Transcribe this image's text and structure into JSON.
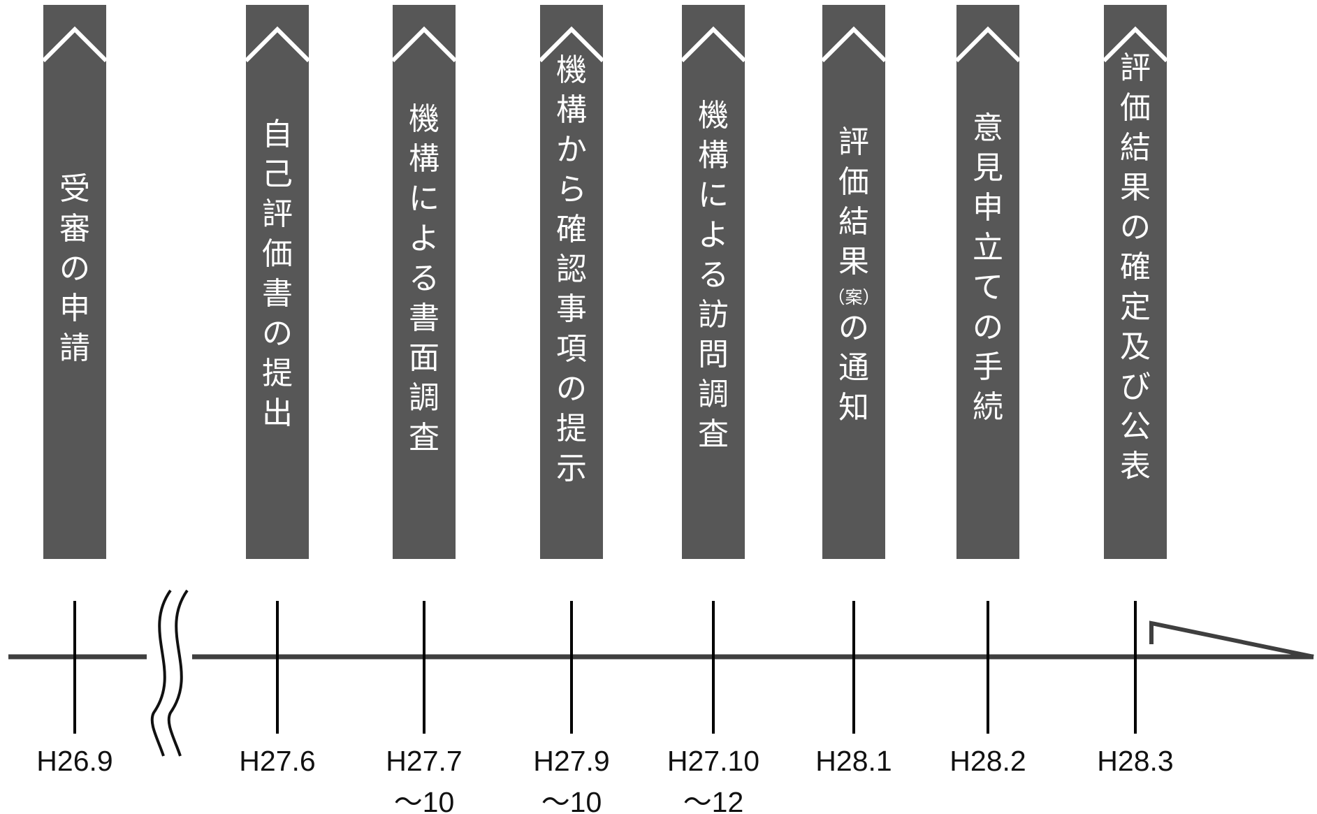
{
  "colors": {
    "banner": "#575757",
    "banner_text": "#ffffff",
    "line": "#3f3f3f",
    "tick": "#000000",
    "date_text": "#111111"
  },
  "steps": [
    {
      "label": [
        "受",
        "審",
        "の",
        "申",
        "請"
      ],
      "date": [
        "H26.9"
      ]
    },
    {
      "label": [
        "自",
        "己",
        "評",
        "価",
        "書",
        "の",
        "提",
        "出"
      ],
      "date": [
        "H27.6"
      ]
    },
    {
      "label": [
        "機",
        "構",
        "に",
        "よ",
        "る",
        "書",
        "面",
        "調",
        "査"
      ],
      "date": [
        "H27.7",
        "〜10"
      ]
    },
    {
      "label": [
        "機",
        "構",
        "か",
        "ら",
        "確",
        "認",
        "事",
        "項",
        "の",
        "提",
        "示"
      ],
      "date": [
        "H27.9",
        "〜10"
      ]
    },
    {
      "label": [
        "機",
        "構",
        "に",
        "よ",
        "る",
        "訪",
        "問",
        "調",
        "査"
      ],
      "date": [
        "H27.10",
        "〜12"
      ]
    },
    {
      "label": [
        "評",
        "価",
        "結",
        "果",
        "（案）",
        "の",
        "通",
        "知"
      ],
      "date": [
        "H28.1"
      ]
    },
    {
      "label": [
        "意",
        "見",
        "申",
        "立",
        "て",
        "の",
        "手",
        "続"
      ],
      "date": [
        "H28.2"
      ]
    },
    {
      "label": [
        "評",
        "価",
        "結",
        "果",
        "の",
        "確",
        "定",
        "及",
        "び",
        "公",
        "表"
      ],
      "date": [
        "H28.3"
      ]
    }
  ],
  "icons": {
    "chevron": "chevron-up-icon",
    "break": "axis-break-icon",
    "arrow": "arrow-head-icon"
  }
}
